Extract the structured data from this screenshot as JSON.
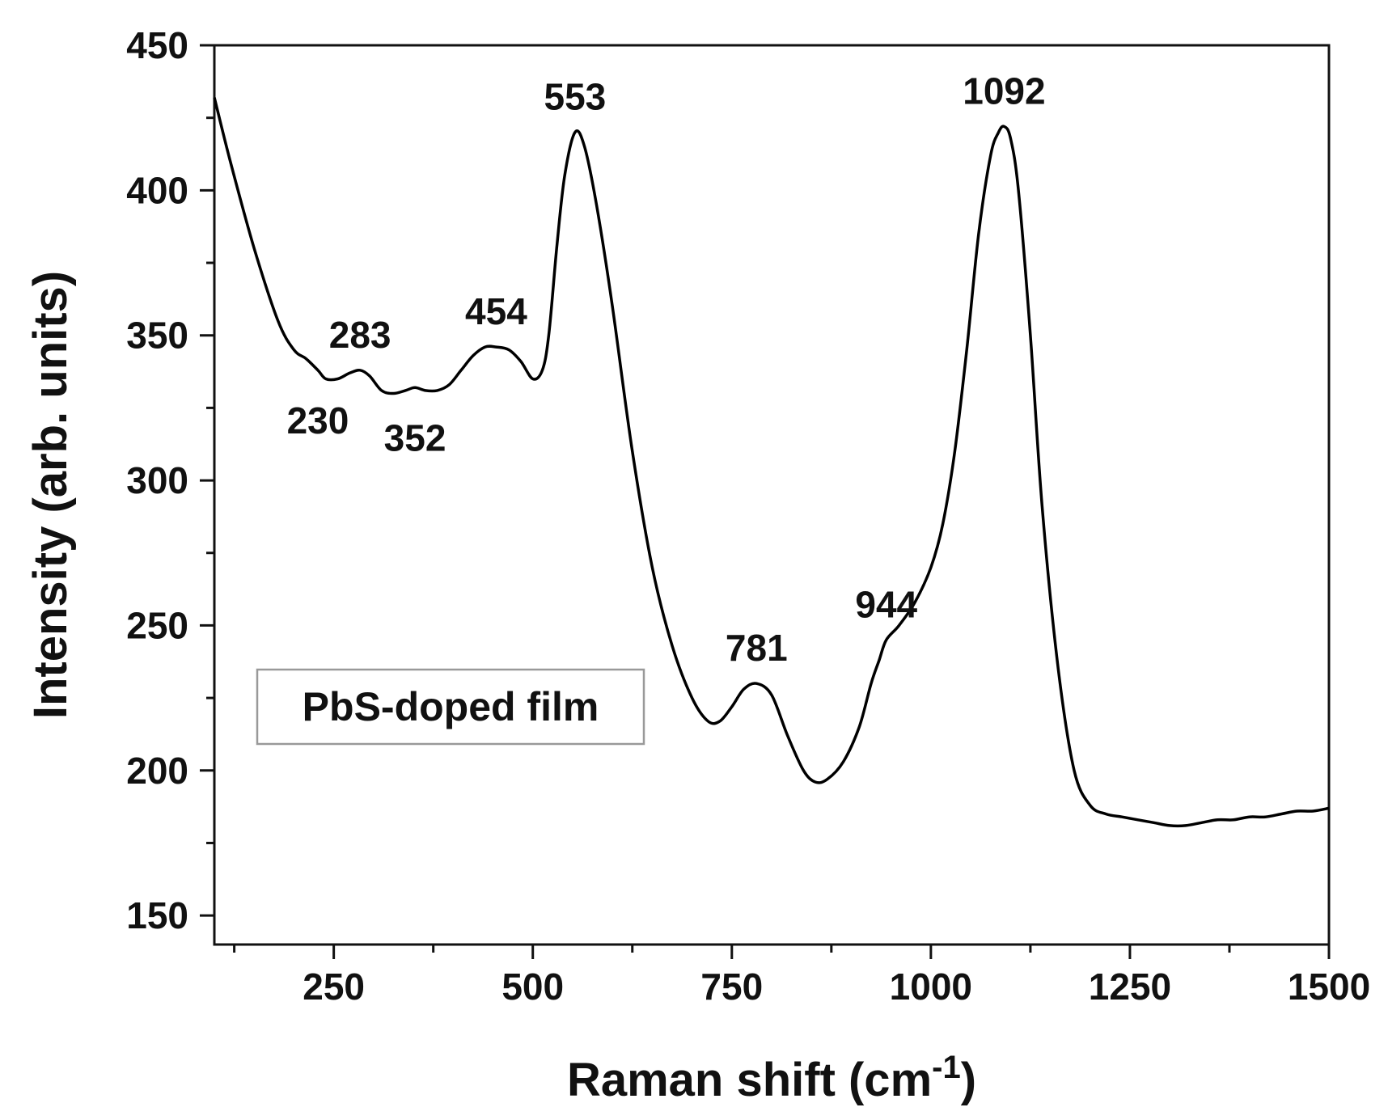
{
  "chart_data": {
    "type": "line",
    "xlabel_main": "Raman shift (cm",
    "xlabel_sup": "-1",
    "xlabel_tail": ")",
    "ylabel": "Intensity (arb. units)",
    "xlim": [
      100,
      1500
    ],
    "ylim": [
      140,
      450
    ],
    "xticks": [
      250,
      500,
      750,
      1000,
      1250,
      1500
    ],
    "yticks": [
      150,
      200,
      250,
      300,
      350,
      400,
      450
    ],
    "grid": false,
    "legend": {
      "text": "PbS-doped film",
      "placement": "lower-left"
    },
    "series": [
      {
        "color": "#000000",
        "x": [
          100,
          120,
          150,
          180,
          200,
          215,
          230,
          240,
          255,
          270,
          283,
          295,
          310,
          325,
          340,
          352,
          365,
          380,
          395,
          410,
          425,
          440,
          454,
          470,
          485,
          500,
          512,
          520,
          530,
          540,
          553,
          565,
          580,
          600,
          625,
          650,
          675,
          700,
          720,
          735,
          750,
          765,
          781,
          800,
          820,
          840,
          855,
          870,
          890,
          910,
          925,
          935,
          944,
          960,
          980,
          1000,
          1015,
          1030,
          1045,
          1060,
          1075,
          1085,
          1092,
          1100,
          1110,
          1125,
          1140,
          1160,
          1180,
          1200,
          1220,
          1240,
          1260,
          1280,
          1300,
          1320,
          1340,
          1360,
          1380,
          1400,
          1420,
          1440,
          1460,
          1480,
          1500
        ],
        "y": [
          432,
          410,
          380,
          355,
          345,
          342,
          338,
          335,
          335,
          337,
          338,
          336,
          331,
          330,
          331,
          332,
          331,
          331,
          333,
          338,
          343,
          346,
          346,
          345,
          341,
          335,
          338,
          350,
          380,
          405,
          420,
          415,
          395,
          360,
          310,
          270,
          243,
          225,
          217,
          217,
          222,
          228,
          230,
          226,
          212,
          200,
          196,
          197,
          203,
          215,
          230,
          238,
          245,
          250,
          258,
          270,
          285,
          310,
          345,
          385,
          412,
          420,
          422,
          418,
          400,
          350,
          290,
          235,
          200,
          188,
          185,
          184,
          183,
          182,
          181,
          181,
          182,
          183,
          183,
          184,
          184,
          185,
          186,
          186,
          187
        ]
      }
    ],
    "annotations": [
      {
        "text": "230",
        "x": 230,
        "y": 338,
        "pos": "below"
      },
      {
        "text": "283",
        "x": 283,
        "y": 338,
        "pos": "above"
      },
      {
        "text": "352",
        "x": 352,
        "y": 332,
        "pos": "below"
      },
      {
        "text": "454",
        "x": 454,
        "y": 346,
        "pos": "above"
      },
      {
        "text": "553",
        "x": 553,
        "y": 420,
        "pos": "above"
      },
      {
        "text": "781",
        "x": 781,
        "y": 230,
        "pos": "above"
      },
      {
        "text": "944",
        "x": 944,
        "y": 245,
        "pos": "above"
      },
      {
        "text": "1092",
        "x": 1092,
        "y": 422,
        "pos": "above"
      }
    ]
  }
}
